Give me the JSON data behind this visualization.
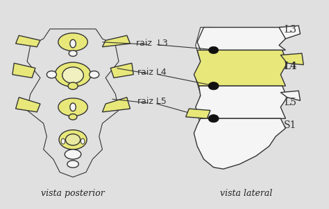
{
  "background_color": "#e8e8e8",
  "figure_bg": "#e0e0e0",
  "title": "",
  "labels": {
    "raiz_L3": "raiz  L3",
    "raiz_L4": "raiz L4",
    "raiz_L5": "raiz L5",
    "L3": "L3",
    "L4": "L4",
    "L5": "L5",
    "S1": "S1",
    "vista_posterior": "vista posterior",
    "vista_lateral": "vista lateral"
  },
  "yellow_fill": "#e8e87a",
  "yellow_dark": "#c8c840",
  "outline_color": "#333333",
  "black_fill": "#111111",
  "white_fill": "#f5f5f5",
  "annotation_color": "#222222",
  "line_color": "#333333",
  "font_size_labels": 9,
  "font_size_vertebra": 10,
  "font_size_caption": 9
}
